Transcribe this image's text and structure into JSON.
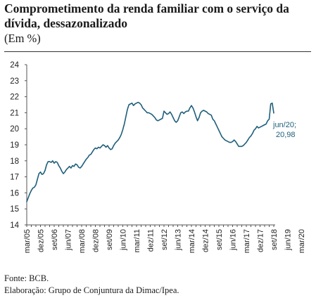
{
  "header": {
    "title": "Comprometimento da renda familiar com o serviço da dívida, dessazonalizado",
    "subtitle": "(Em %)"
  },
  "footer": {
    "source": "Fonte: BCB.",
    "credit": "Elaboração: Grupo de Conjuntura da Dimac/Ipea."
  },
  "chart_data": {
    "type": "line",
    "title": "Comprometimento da renda familiar com o serviço da dívida, dessazonalizado",
    "ylabel": "(Em %)",
    "ylim": [
      14,
      24
    ],
    "yticks": [
      "14",
      "15",
      "16",
      "17",
      "18",
      "19",
      "20",
      "21",
      "22",
      "23",
      "24"
    ],
    "xtick_labels": [
      "mar/05",
      "dez/05",
      "set/06",
      "jun/07",
      "mar/08",
      "dez/08",
      "set/09",
      "jun/10",
      "mar/11",
      "dez/11",
      "set/12",
      "jun/13",
      "mar/14",
      "dez/14",
      "set/15",
      "jun/16",
      "mar/17",
      "dez/17",
      "set/18",
      "jun/19",
      "mar/20"
    ],
    "annotation": {
      "label": "jun/20;",
      "value": "20,98"
    },
    "line_color": "#1e5f7a",
    "grid": false,
    "series": [
      {
        "start": "2005-03",
        "frequency": "monthly",
        "values": [
          15.45,
          15.7,
          15.95,
          16.15,
          16.3,
          16.35,
          16.5,
          16.85,
          17.2,
          17.3,
          17.15,
          17.2,
          17.4,
          17.75,
          17.95,
          17.95,
          17.9,
          18.0,
          17.85,
          17.95,
          17.9,
          17.7,
          17.55,
          17.35,
          17.2,
          17.3,
          17.45,
          17.55,
          17.65,
          17.55,
          17.7,
          17.65,
          17.8,
          17.75,
          17.6,
          17.55,
          17.65,
          17.8,
          17.95,
          18.1,
          18.2,
          18.35,
          18.4,
          18.55,
          18.7,
          18.8,
          18.75,
          18.85,
          18.8,
          18.9,
          19.0,
          18.95,
          18.85,
          18.95,
          18.8,
          18.7,
          18.75,
          18.95,
          19.1,
          19.2,
          19.3,
          19.45,
          19.65,
          19.95,
          20.3,
          20.75,
          21.2,
          21.5,
          21.55,
          21.6,
          21.45,
          21.55,
          21.6,
          21.65,
          21.6,
          21.5,
          21.3,
          21.2,
          21.1,
          21.0,
          21.0,
          20.95,
          20.9,
          20.8,
          20.7,
          20.55,
          20.5,
          20.55,
          20.6,
          20.65,
          21.1,
          21.0,
          20.9,
          20.95,
          21.05,
          20.9,
          20.7,
          20.5,
          20.4,
          20.5,
          20.75,
          21.0,
          21.05,
          20.95,
          21.05,
          21.1,
          21.1,
          21.3,
          21.45,
          21.3,
          21.05,
          20.75,
          20.5,
          20.7,
          21.0,
          21.1,
          21.15,
          21.1,
          21.05,
          20.95,
          20.9,
          20.85,
          20.6,
          20.5,
          20.3,
          20.1,
          19.9,
          19.7,
          19.5,
          19.4,
          19.3,
          19.25,
          19.2,
          19.15,
          19.15,
          19.2,
          19.3,
          19.2,
          19.05,
          18.9,
          18.9,
          18.9,
          18.95,
          19.05,
          19.15,
          19.3,
          19.45,
          19.55,
          19.7,
          19.9,
          20.0,
          20.15,
          20.05,
          20.1,
          20.15,
          20.2,
          20.25,
          20.3,
          20.5,
          20.6,
          21.55,
          21.6,
          20.98
        ]
      }
    ]
  }
}
